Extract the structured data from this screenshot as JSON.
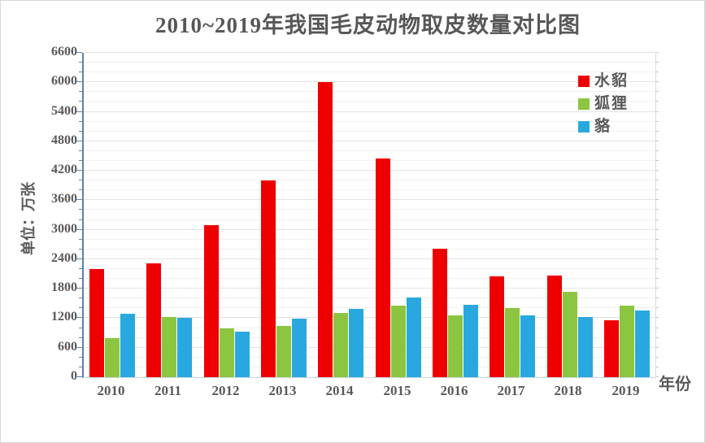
{
  "style": {
    "page_border": "#d8d8d8",
    "title_color": "#575757",
    "label_color": "#595959",
    "y_axis_color": "#5b84a8",
    "gridline_minor": "#f1f1f1",
    "gridline_major": "#e3e3e3"
  },
  "chart_data": {
    "type": "bar",
    "title": "2010~2019年我国毛皮动物取皮数量对比图",
    "ylabel": "单位：万张",
    "xlabel": "年份",
    "categories": [
      "2010",
      "2011",
      "2012",
      "2013",
      "2014",
      "2015",
      "2016",
      "2017",
      "2018",
      "2019"
    ],
    "series": [
      {
        "name": "水貂",
        "color": "#ee0000",
        "values": [
          2200,
          2315,
          3100,
          4010,
          6000,
          4450,
          2615,
          2050,
          2070,
          1160
        ]
      },
      {
        "name": "狐狸",
        "color": "#8cc540",
        "values": [
          790,
          1225,
          1000,
          1050,
          1305,
          1450,
          1265,
          1410,
          1740,
          1450
        ]
      },
      {
        "name": "貉",
        "color": "#29a8df",
        "values": [
          1290,
          1200,
          920,
          1195,
          1395,
          1615,
          1480,
          1250,
          1230,
          1355
        ]
      }
    ],
    "ylim": [
      0,
      6600
    ],
    "ytick_step": 600,
    "minor_step": 200,
    "yticks": [
      0,
      600,
      1200,
      1800,
      2400,
      3000,
      3600,
      4200,
      4800,
      5400,
      6000,
      6600
    ],
    "legend_position": "top-right-inside",
    "grid": "horizontal"
  }
}
